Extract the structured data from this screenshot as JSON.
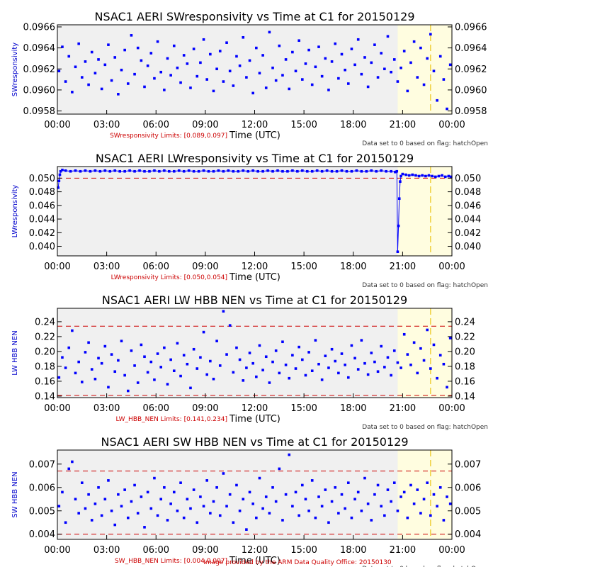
{
  "footer": "Image provided by the ARM Data Quality Office: 20150130",
  "colors": {
    "points": "#0000ff",
    "limits": "#cc0000",
    "flag_band": "#fffde0",
    "flag_line": "#f0d040",
    "plot_bg": "#f0f0f0"
  },
  "chart_data": [
    {
      "type": "scatter",
      "title": "NSAC1 AERI SWresponsivity vs Time at C1 for 20150129",
      "ylabel": "SWresponsivity",
      "xlabel": "Time (UTC)",
      "xlim": [
        0,
        24
      ],
      "ylim": [
        0.09577,
        0.09662
      ],
      "x_ticks": [
        "00:00",
        "03:00",
        "06:00",
        "09:00",
        "12:00",
        "15:00",
        "18:00",
        "21:00",
        "00:00"
      ],
      "y_ticks": [
        "0.0958",
        "0.0960",
        "0.0962",
        "0.0964",
        "0.0966"
      ],
      "y_tick_values": [
        0.0958,
        0.096,
        0.0962,
        0.0964,
        0.0966
      ],
      "limits_text": "SWresponsivity Limits: [0.089,0.097]",
      "limits_lines": [],
      "note": "Data set to 0 based on flag: hatchOpen",
      "flag_band_hours": [
        20.7,
        24.0
      ],
      "flag_line_hour": 22.7,
      "series": {
        "x": [
          0.1,
          0.3,
          0.5,
          0.7,
          0.9,
          1.1,
          1.3,
          1.5,
          1.7,
          1.9,
          2.1,
          2.3,
          2.5,
          2.7,
          2.9,
          3.1,
          3.3,
          3.5,
          3.7,
          3.9,
          4.1,
          4.3,
          4.5,
          4.7,
          4.9,
          5.1,
          5.3,
          5.5,
          5.7,
          5.9,
          6.1,
          6.3,
          6.5,
          6.7,
          6.9,
          7.1,
          7.3,
          7.5,
          7.7,
          7.9,
          8.1,
          8.3,
          8.5,
          8.7,
          8.9,
          9.1,
          9.3,
          9.5,
          9.7,
          9.9,
          10.1,
          10.3,
          10.5,
          10.7,
          10.9,
          11.1,
          11.3,
          11.5,
          11.7,
          11.9,
          12.1,
          12.3,
          12.5,
          12.7,
          12.9,
          13.1,
          13.3,
          13.5,
          13.7,
          13.9,
          14.1,
          14.3,
          14.5,
          14.7,
          14.9,
          15.1,
          15.3,
          15.5,
          15.7,
          15.9,
          16.1,
          16.3,
          16.5,
          16.7,
          16.9,
          17.1,
          17.3,
          17.5,
          17.7,
          17.9,
          18.1,
          18.3,
          18.5,
          18.7,
          18.9,
          19.1,
          19.3,
          19.5,
          19.7,
          19.9,
          20.1,
          20.3,
          20.5,
          20.7,
          20.9,
          21.1,
          21.3,
          21.5,
          21.7,
          21.9,
          22.1,
          22.3,
          22.5,
          22.7,
          22.9,
          23.1,
          23.3,
          23.5,
          23.7,
          23.9
        ],
        "y": [
          0.09618,
          0.09641,
          0.09608,
          0.09632,
          0.09598,
          0.09622,
          0.09644,
          0.09612,
          0.09627,
          0.09605,
          0.09636,
          0.09616,
          0.09629,
          0.09601,
          0.09624,
          0.09643,
          0.09609,
          0.09631,
          0.09596,
          0.09619,
          0.09638,
          0.09606,
          0.09652,
          0.09615,
          0.0964,
          0.09628,
          0.09603,
          0.09623,
          0.09635,
          0.09611,
          0.09646,
          0.09617,
          0.096,
          0.0963,
          0.09614,
          0.09642,
          0.09621,
          0.09607,
          0.09633,
          0.09625,
          0.09602,
          0.09639,
          0.09613,
          0.09626,
          0.09648,
          0.0961,
          0.09634,
          0.09599,
          0.0962,
          0.09637,
          0.09608,
          0.09645,
          0.09618,
          0.09604,
          0.09632,
          0.09623,
          0.0965,
          0.09612,
          0.09628,
          0.09597,
          0.0964,
          0.09616,
          0.09633,
          0.09602,
          0.09655,
          0.09621,
          0.09609,
          0.09642,
          0.09614,
          0.09629,
          0.09601,
          0.09636,
          0.09618,
          0.09647,
          0.0961,
          0.09625,
          0.09638,
          0.09605,
          0.09622,
          0.09641,
          0.09613,
          0.0963,
          0.096,
          0.09627,
          0.09644,
          0.09611,
          0.09634,
          0.09619,
          0.09606,
          0.09639,
          0.09624,
          0.09648,
          0.09615,
          0.09631,
          0.09603,
          0.09626,
          0.09643,
          0.09612,
          0.09635,
          0.0962,
          0.09651,
          0.09617,
          0.09629,
          0.09608,
          0.09621,
          0.09637,
          0.09599,
          0.09626,
          0.09646,
          0.09612,
          0.0964,
          0.09605,
          0.0963,
          0.09653,
          0.09618,
          0.0959,
          0.09632,
          0.0961,
          0.09582,
          0.09624
        ]
      }
    },
    {
      "type": "scatter",
      "title": "NSAC1 AERI LWresponsivity vs Time at C1 for 20150129",
      "ylabel": "LWresponsivity",
      "xlabel": "Time (UTC)",
      "xlim": [
        0,
        24
      ],
      "ylim": [
        0.0386,
        0.0517
      ],
      "x_ticks": [
        "00:00",
        "03:00",
        "06:00",
        "09:00",
        "12:00",
        "15:00",
        "18:00",
        "21:00",
        "00:00"
      ],
      "y_ticks": [
        "0.040",
        "0.042",
        "0.044",
        "0.046",
        "0.048",
        "0.050"
      ],
      "y_tick_values": [
        0.04,
        0.042,
        0.044,
        0.046,
        0.048,
        0.05
      ],
      "limits_text": "LWresponsivity Limits: [0.050,0.054]",
      "limits_lines": [
        0.05
      ],
      "note": "Data set to 0 based on flag: hatchOpen",
      "flag_band_hours": [
        20.7,
        24.0
      ],
      "flag_line_hour": 22.7,
      "series": {
        "x": [
          0.05,
          0.1,
          0.15,
          0.2,
          0.3,
          0.5,
          0.8,
          1.1,
          1.4,
          1.7,
          2.0,
          2.3,
          2.6,
          2.9,
          3.2,
          3.5,
          3.8,
          4.1,
          4.4,
          4.7,
          5.0,
          5.3,
          5.6,
          5.9,
          6.2,
          6.5,
          6.8,
          7.1,
          7.4,
          7.7,
          8.0,
          8.3,
          8.6,
          8.9,
          9.2,
          9.5,
          9.8,
          10.1,
          10.4,
          10.7,
          11.0,
          11.3,
          11.6,
          11.9,
          12.2,
          12.5,
          12.8,
          13.1,
          13.4,
          13.7,
          14.0,
          14.3,
          14.6,
          14.9,
          15.2,
          15.5,
          15.8,
          16.1,
          16.4,
          16.7,
          17.0,
          17.3,
          17.6,
          17.9,
          18.2,
          18.5,
          18.8,
          19.1,
          19.4,
          19.7,
          20.0,
          20.3,
          20.55,
          20.65,
          20.7,
          20.75,
          20.8,
          20.85,
          20.9,
          21.0,
          21.2,
          21.4,
          21.6,
          21.8,
          22.0,
          22.2,
          22.4,
          22.6,
          22.8,
          23.0,
          23.2,
          23.4,
          23.6,
          23.8,
          23.95
        ],
        "y": [
          0.0486,
          0.0496,
          0.0505,
          0.051,
          0.0512,
          0.0511,
          0.051,
          0.0511,
          0.051,
          0.0511,
          0.051,
          0.0511,
          0.051,
          0.0511,
          0.051,
          0.0511,
          0.051,
          0.051,
          0.0511,
          0.051,
          0.0511,
          0.051,
          0.051,
          0.0511,
          0.051,
          0.0511,
          0.051,
          0.051,
          0.0511,
          0.051,
          0.0511,
          0.051,
          0.051,
          0.0511,
          0.051,
          0.051,
          0.0511,
          0.051,
          0.0511,
          0.051,
          0.051,
          0.0511,
          0.051,
          0.0511,
          0.051,
          0.051,
          0.0511,
          0.051,
          0.0511,
          0.051,
          0.051,
          0.0511,
          0.051,
          0.0511,
          0.051,
          0.051,
          0.0511,
          0.051,
          0.0511,
          0.051,
          0.051,
          0.0511,
          0.051,
          0.051,
          0.0511,
          0.051,
          0.051,
          0.0511,
          0.051,
          0.0511,
          0.051,
          0.051,
          0.0509,
          0.051,
          0.0392,
          0.043,
          0.047,
          0.0495,
          0.0503,
          0.0506,
          0.0505,
          0.0504,
          0.0505,
          0.0504,
          0.0503,
          0.0504,
          0.0503,
          0.0504,
          0.0503,
          0.0502,
          0.0503,
          0.0504,
          0.0502,
          0.0503,
          0.0502
        ]
      }
    },
    {
      "type": "scatter",
      "title": "NSAC1 AERI LW HBB NEN vs Time at C1 for 20150129",
      "ylabel": "LW HBB NEN",
      "xlabel": "Time (UTC)",
      "xlim": [
        0,
        24
      ],
      "ylim": [
        0.138,
        0.258
      ],
      "x_ticks": [
        "00:00",
        "03:00",
        "06:00",
        "09:00",
        "12:00",
        "15:00",
        "18:00",
        "21:00",
        "00:00"
      ],
      "y_ticks": [
        "0.14",
        "0.16",
        "0.18",
        "0.20",
        "0.22",
        "0.24"
      ],
      "y_tick_values": [
        0.14,
        0.16,
        0.18,
        0.2,
        0.22,
        0.24
      ],
      "limits_text": "LW_HBB_NEN Limits: [0.141,0.234]",
      "limits_lines": [
        0.141,
        0.234
      ],
      "note": "Data set to 0 based on flag: hatchOpen",
      "flag_band_hours": [
        20.7,
        24.0
      ],
      "flag_line_hour": 22.7,
      "series": {
        "x": [
          0.1,
          0.3,
          0.5,
          0.7,
          0.9,
          1.1,
          1.3,
          1.5,
          1.7,
          1.9,
          2.1,
          2.3,
          2.5,
          2.7,
          2.9,
          3.1,
          3.3,
          3.5,
          3.7,
          3.9,
          4.1,
          4.3,
          4.5,
          4.7,
          4.9,
          5.1,
          5.3,
          5.5,
          5.7,
          5.9,
          6.1,
          6.3,
          6.5,
          6.7,
          6.9,
          7.1,
          7.3,
          7.5,
          7.7,
          7.9,
          8.1,
          8.3,
          8.5,
          8.7,
          8.9,
          9.1,
          9.3,
          9.5,
          9.7,
          9.9,
          10.1,
          10.3,
          10.5,
          10.7,
          10.9,
          11.1,
          11.3,
          11.5,
          11.7,
          11.9,
          12.1,
          12.3,
          12.5,
          12.7,
          12.9,
          13.1,
          13.3,
          13.5,
          13.7,
          13.9,
          14.1,
          14.3,
          14.5,
          14.7,
          14.9,
          15.1,
          15.3,
          15.5,
          15.7,
          15.9,
          16.1,
          16.3,
          16.5,
          16.7,
          16.9,
          17.1,
          17.3,
          17.5,
          17.7,
          17.9,
          18.1,
          18.3,
          18.5,
          18.7,
          18.9,
          19.1,
          19.3,
          19.5,
          19.7,
          19.9,
          20.1,
          20.3,
          20.5,
          20.7,
          20.9,
          21.1,
          21.3,
          21.5,
          21.7,
          21.9,
          22.1,
          22.3,
          22.5,
          22.7,
          22.9,
          23.1,
          23.3,
          23.5,
          23.7,
          23.9
        ],
        "y": [
          0.165,
          0.192,
          0.178,
          0.205,
          0.228,
          0.171,
          0.186,
          0.159,
          0.199,
          0.212,
          0.176,
          0.163,
          0.191,
          0.184,
          0.207,
          0.152,
          0.196,
          0.173,
          0.188,
          0.214,
          0.168,
          0.147,
          0.201,
          0.181,
          0.158,
          0.209,
          0.193,
          0.172,
          0.186,
          0.162,
          0.197,
          0.179,
          0.205,
          0.156,
          0.189,
          0.174,
          0.211,
          0.167,
          0.195,
          0.183,
          0.151,
          0.203,
          0.177,
          0.192,
          0.226,
          0.169,
          0.187,
          0.163,
          0.214,
          0.181,
          0.254,
          0.196,
          0.235,
          0.172,
          0.205,
          0.189,
          0.161,
          0.178,
          0.198,
          0.184,
          0.166,
          0.208,
          0.175,
          0.193,
          0.158,
          0.186,
          0.201,
          0.171,
          0.213,
          0.182,
          0.164,
          0.195,
          0.177,
          0.206,
          0.189,
          0.168,
          0.199,
          0.174,
          0.215,
          0.183,
          0.162,
          0.194,
          0.178,
          0.203,
          0.187,
          0.171,
          0.197,
          0.182,
          0.165,
          0.208,
          0.191,
          0.176,
          0.215,
          0.184,
          0.169,
          0.198,
          0.186,
          0.173,
          0.207,
          0.179,
          0.192,
          0.168,
          0.201,
          0.185,
          0.178,
          0.223,
          0.196,
          0.182,
          0.212,
          0.171,
          0.204,
          0.188,
          0.229,
          0.177,
          0.209,
          0.164,
          0.195,
          0.183,
          0.152,
          0.218
        ]
      }
    },
    {
      "type": "scatter",
      "title": "NSAC1 AERI SW HBB NEN vs Time at C1 for 20150129",
      "ylabel": "SW HBB NEN",
      "xlabel": "Time (UTC)",
      "xlim": [
        0,
        24
      ],
      "ylim": [
        0.00378,
        0.0076
      ],
      "x_ticks": [
        "00:00",
        "03:00",
        "06:00",
        "09:00",
        "12:00",
        "15:00",
        "18:00",
        "21:00",
        "00:00"
      ],
      "y_ticks": [
        "0.004",
        "0.005",
        "0.006",
        "0.007"
      ],
      "y_tick_values": [
        0.004,
        0.005,
        0.006,
        0.007
      ],
      "limits_text": "SW_HBB_NEN Limits: [0.004,0.007]",
      "limits_lines": [
        0.004,
        0.0067
      ],
      "note": "Data set to 0 based on flag: hatchOpen",
      "flag_band_hours": [
        20.7,
        24.0
      ],
      "flag_line_hour": 22.7,
      "series": {
        "x": [
          0.1,
          0.3,
          0.5,
          0.7,
          0.9,
          1.1,
          1.3,
          1.5,
          1.7,
          1.9,
          2.1,
          2.3,
          2.5,
          2.7,
          2.9,
          3.1,
          3.3,
          3.5,
          3.7,
          3.9,
          4.1,
          4.3,
          4.5,
          4.7,
          4.9,
          5.1,
          5.3,
          5.5,
          5.7,
          5.9,
          6.1,
          6.3,
          6.5,
          6.7,
          6.9,
          7.1,
          7.3,
          7.5,
          7.7,
          7.9,
          8.1,
          8.3,
          8.5,
          8.7,
          8.9,
          9.1,
          9.3,
          9.5,
          9.7,
          9.9,
          10.1,
          10.3,
          10.5,
          10.7,
          10.9,
          11.1,
          11.3,
          11.5,
          11.7,
          11.9,
          12.1,
          12.3,
          12.5,
          12.7,
          12.9,
          13.1,
          13.3,
          13.5,
          13.7,
          13.9,
          14.1,
          14.3,
          14.5,
          14.7,
          14.9,
          15.1,
          15.3,
          15.5,
          15.7,
          15.9,
          16.1,
          16.3,
          16.5,
          16.7,
          16.9,
          17.1,
          17.3,
          17.5,
          17.7,
          17.9,
          18.1,
          18.3,
          18.5,
          18.7,
          18.9,
          19.1,
          19.3,
          19.5,
          19.7,
          19.9,
          20.1,
          20.3,
          20.5,
          20.7,
          20.9,
          21.1,
          21.3,
          21.5,
          21.7,
          21.9,
          22.1,
          22.3,
          22.5,
          22.7,
          22.9,
          23.1,
          23.3,
          23.5,
          23.7,
          23.9
        ],
        "y": [
          0.0052,
          0.0058,
          0.0045,
          0.0068,
          0.0071,
          0.0055,
          0.0049,
          0.0062,
          0.0051,
          0.0057,
          0.0046,
          0.0053,
          0.006,
          0.0048,
          0.0055,
          0.0063,
          0.005,
          0.0044,
          0.0057,
          0.0052,
          0.0059,
          0.0047,
          0.0054,
          0.0061,
          0.0049,
          0.0056,
          0.0043,
          0.0058,
          0.0051,
          0.0064,
          0.0048,
          0.0055,
          0.006,
          0.0046,
          0.0053,
          0.0058,
          0.005,
          0.0062,
          0.0047,
          0.0055,
          0.0051,
          0.0059,
          0.0045,
          0.0056,
          0.0052,
          0.0063,
          0.0049,
          0.0054,
          0.006,
          0.0048,
          0.0066,
          0.0052,
          0.0057,
          0.0045,
          0.0061,
          0.005,
          0.0055,
          0.0042,
          0.0058,
          0.0053,
          0.0047,
          0.0064,
          0.0051,
          0.0056,
          0.0049,
          0.006,
          0.0054,
          0.0068,
          0.0046,
          0.0057,
          0.0074,
          0.0052,
          0.0058,
          0.0048,
          0.0061,
          0.0055,
          0.005,
          0.0063,
          0.0047,
          0.0056,
          0.0052,
          0.0059,
          0.0045,
          0.0054,
          0.006,
          0.0049,
          0.0057,
          0.0051,
          0.0062,
          0.0047,
          0.0055,
          0.0058,
          0.005,
          0.0064,
          0.0053,
          0.0046,
          0.0057,
          0.0061,
          0.0052,
          0.0048,
          0.0059,
          0.0054,
          0.0062,
          0.005,
          0.0056,
          0.0058,
          0.0047,
          0.0061,
          0.0053,
          0.0059,
          0.0049,
          0.0055,
          0.0062,
          0.0048,
          0.0057,
          0.0052,
          0.006,
          0.0046,
          0.0056,
          0.0053
        ]
      }
    }
  ]
}
